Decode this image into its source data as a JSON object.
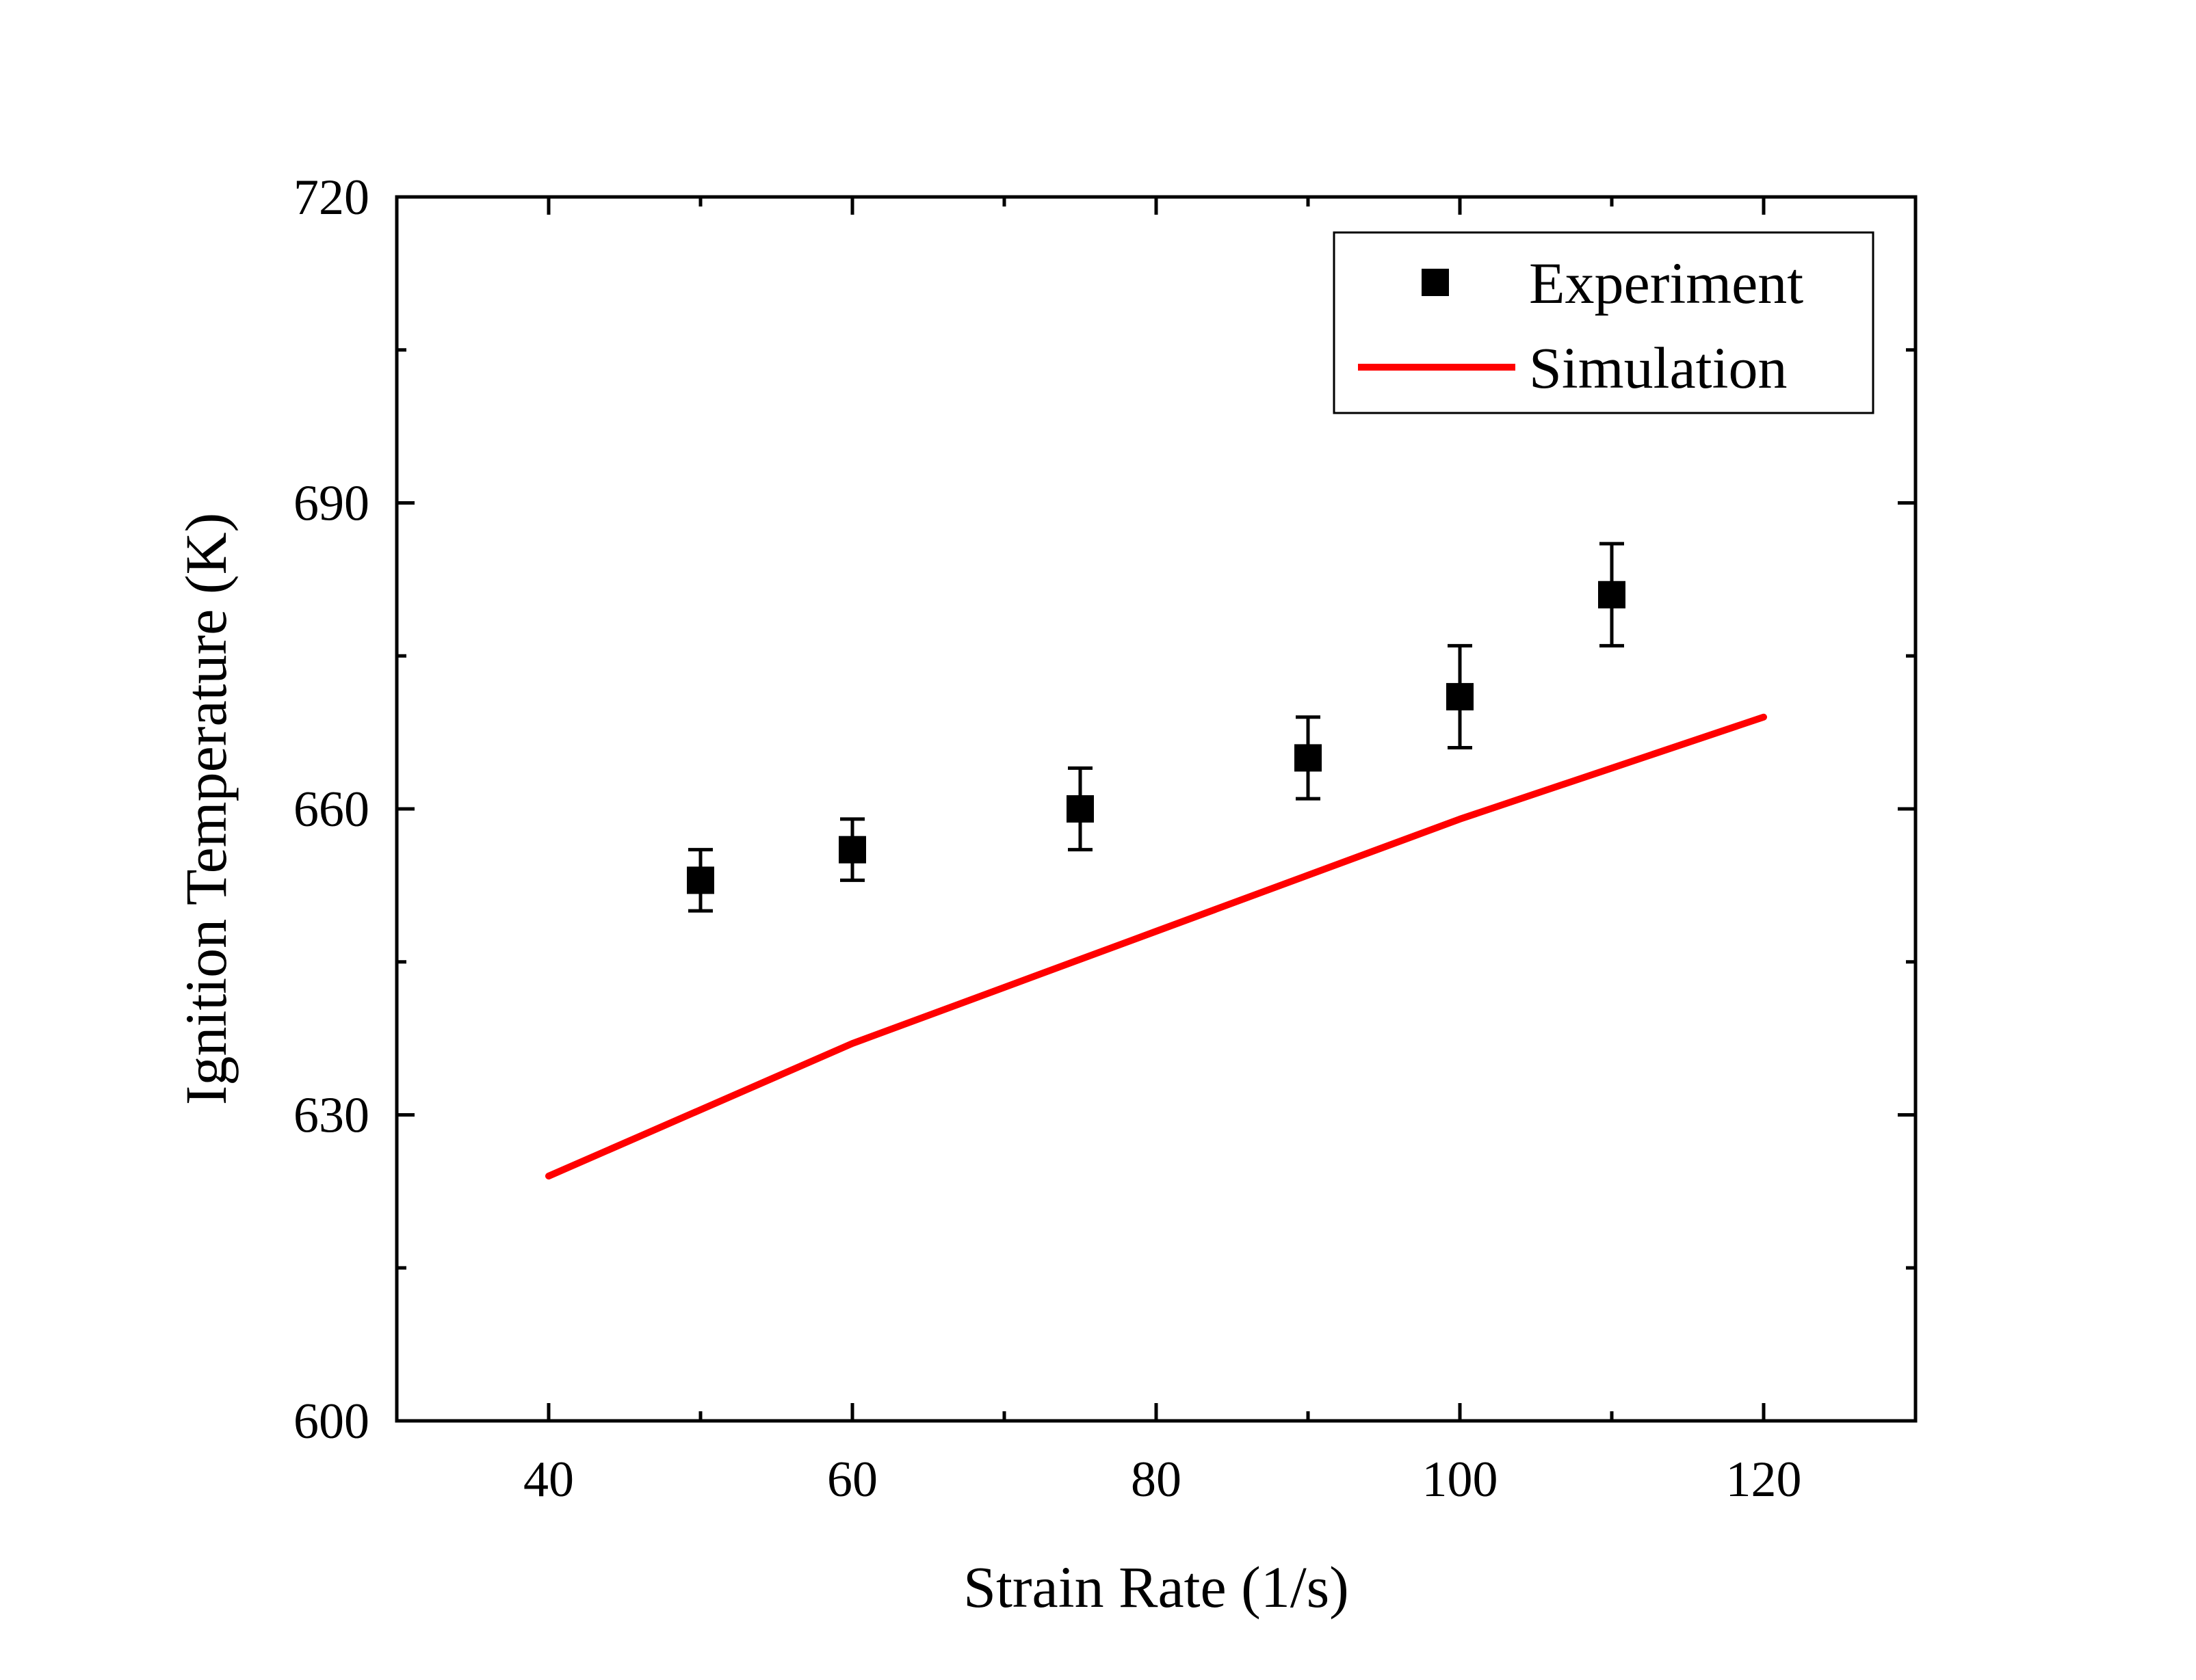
{
  "chart_data": {
    "type": "scatter",
    "xlabel": "Strain Rate (1/s)",
    "ylabel": "Ignition Temperature (K)",
    "xlim": [
      30,
      130
    ],
    "ylim": [
      600,
      720
    ],
    "x_ticks": [
      40,
      60,
      80,
      100,
      120
    ],
    "y_ticks": [
      600,
      630,
      660,
      690,
      720
    ],
    "x_tick_labels": [
      "40",
      "60",
      "80",
      "100",
      "120"
    ],
    "y_tick_labels": [
      "600",
      "630",
      "660",
      "690",
      "720"
    ],
    "grid": false,
    "legend_position": "top-right",
    "series": [
      {
        "name": "Experiment",
        "kind": "scatter",
        "marker": "square",
        "color": "#000000",
        "x": [
          50,
          60,
          75,
          90,
          100,
          110
        ],
        "y": [
          653,
          656,
          660,
          665,
          671,
          681
        ],
        "error": [
          3,
          3,
          4,
          4,
          5,
          5
        ]
      },
      {
        "name": "Simulation",
        "kind": "line",
        "color": "#ff0000",
        "x": [
          40,
          50,
          60,
          70,
          80,
          90,
          100,
          110,
          120
        ],
        "y": [
          624,
          630.5,
          637,
          642.5,
          648,
          653.5,
          659,
          664,
          669
        ]
      }
    ]
  }
}
